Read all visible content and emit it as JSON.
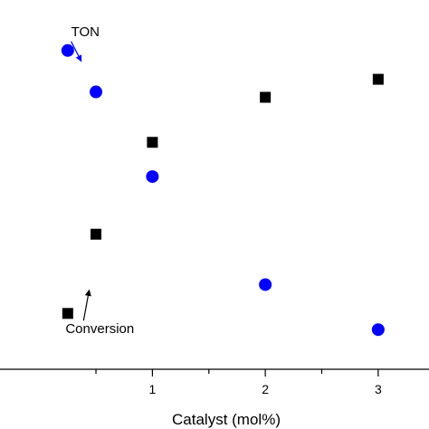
{
  "chart_data": {
    "type": "scatter",
    "xlabel": "Catalyst (mol%)",
    "xlim": [
      -0.35,
      3.45
    ],
    "ylim": [
      0,
      1
    ],
    "x_ticks": [
      1,
      2,
      3
    ],
    "x_tick_labels": [
      "1",
      "2",
      "3"
    ],
    "x_minor_ticks": [
      0.5,
      1.5,
      2.5
    ],
    "series": [
      {
        "name": "TON",
        "marker": "circle",
        "color": "#0000ff",
        "x": [
          0.25,
          0.5,
          1,
          2,
          3
        ],
        "y": [
          0.885,
          0.77,
          0.535,
          0.235,
          0.11
        ]
      },
      {
        "name": "Conversion",
        "marker": "square",
        "color": "#000000",
        "x": [
          0.25,
          0.5,
          1,
          2,
          3
        ],
        "y": [
          0.155,
          0.375,
          0.63,
          0.755,
          0.805
        ]
      }
    ],
    "annotations": [
      {
        "text": "TON",
        "color": "#0000ff",
        "text_x": 0.28,
        "text_y": 0.925,
        "arrow_from": [
          0.28,
          0.91
        ],
        "arrow_to": [
          0.37,
          0.855
        ]
      },
      {
        "text": "Conversion",
        "color": "#000000",
        "text_x": 0.23,
        "text_y": 0.1,
        "arrow_from": [
          0.39,
          0.135
        ],
        "arrow_to": [
          0.44,
          0.22
        ]
      }
    ]
  }
}
